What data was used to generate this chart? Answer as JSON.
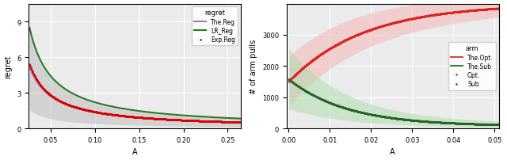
{
  "fig_width": 6.4,
  "fig_height": 2.03,
  "dpi": 100,
  "left_xlabel": "A",
  "left_ylabel": "regret",
  "left_xlim": [
    0.025,
    0.265
  ],
  "left_ylim": [
    0,
    10.5
  ],
  "left_xticks": [
    0.05,
    0.1,
    0.15,
    0.2,
    0.25
  ],
  "left_yticks": [
    0,
    3,
    6,
    9
  ],
  "left_legend_title": "regret",
  "left_legend_labels": [
    "Exp.Reg",
    "LR_Reg",
    "The.Reg"
  ],
  "left_color_dot": "#dd0000",
  "left_color_lr": "#2a7a2a",
  "left_color_theory": "#8888bb",
  "left_band_color": "#bbbbbb",
  "right_xlabel": "A",
  "right_ylabel": "# of arm pulls",
  "right_xlim": [
    -0.0005,
    0.051
  ],
  "right_ylim": [
    0,
    4000
  ],
  "right_xticks": [
    0.0,
    0.01,
    0.02,
    0.03,
    0.04,
    0.05
  ],
  "right_yticks": [
    0,
    1000,
    2000,
    3000
  ],
  "right_legend_title": "arm",
  "right_legend_labels": [
    "Opt.",
    "Sub",
    "The.Opt.",
    "The.Sub"
  ],
  "right_color_opt": "#dd2222",
  "right_color_sub": "#226622",
  "right_band_opt": "#f5bbbb",
  "right_band_sub": "#aaddaa"
}
